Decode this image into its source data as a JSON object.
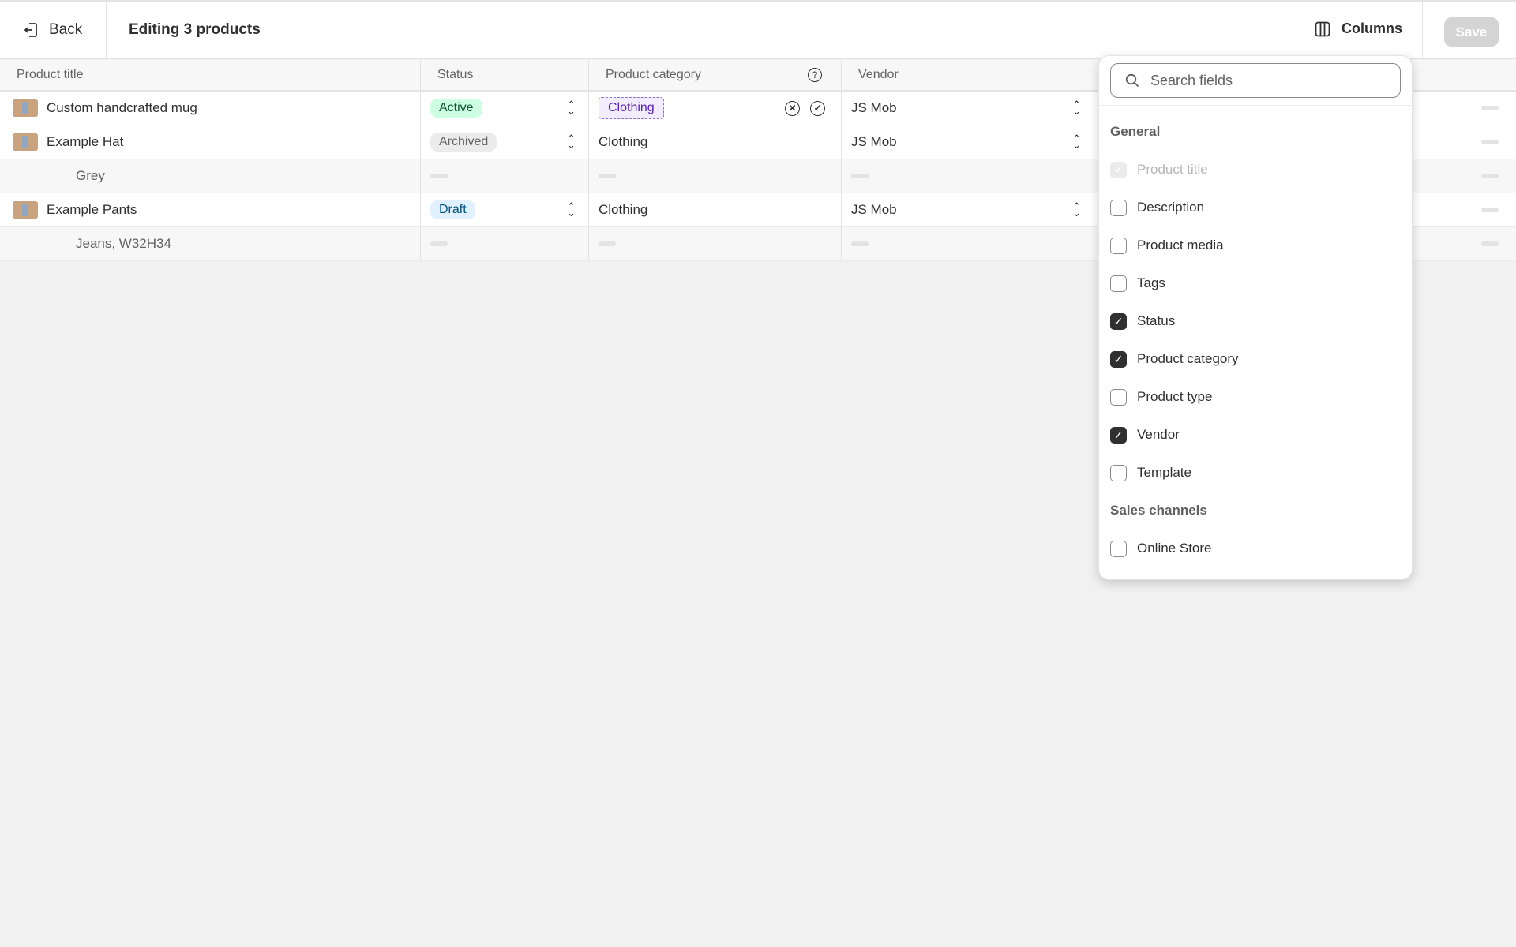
{
  "header": {
    "back_label": "Back",
    "title": "Editing 3 products",
    "columns_label": "Columns",
    "save_label": "Save"
  },
  "table": {
    "columns": [
      "Product title",
      "Status",
      "Product category",
      "Vendor"
    ],
    "rows": [
      {
        "title": "Custom handcrafted mug",
        "status": "Active",
        "category": "Clothing",
        "vendor": "JS Mob",
        "editing": true
      },
      {
        "title": "Example Hat",
        "status": "Archived",
        "category": "Clothing",
        "vendor": "JS Mob"
      },
      {
        "title": "Grey",
        "variant": true
      },
      {
        "title": "Example Pants",
        "status": "Draft",
        "category": "Clothing",
        "vendor": "JS Mob"
      },
      {
        "title": "Jeans, W32H34",
        "variant": true
      }
    ]
  },
  "columns_popover": {
    "search_placeholder": "Search fields",
    "sections": [
      {
        "title": "General",
        "items": [
          {
            "label": "Product title",
            "checked": true,
            "disabled": true
          },
          {
            "label": "Description",
            "checked": false
          },
          {
            "label": "Product media",
            "checked": false
          },
          {
            "label": "Tags",
            "checked": false
          },
          {
            "label": "Status",
            "checked": true
          },
          {
            "label": "Product category",
            "checked": true
          },
          {
            "label": "Product type",
            "checked": false
          },
          {
            "label": "Vendor",
            "checked": true
          },
          {
            "label": "Template",
            "checked": false
          }
        ]
      },
      {
        "title": "Sales channels",
        "items": [
          {
            "label": "Online Store",
            "checked": false
          }
        ]
      }
    ]
  }
}
